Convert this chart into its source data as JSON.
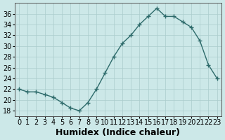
{
  "x": [
    0,
    1,
    2,
    3,
    4,
    5,
    6,
    7,
    8,
    9,
    10,
    11,
    12,
    13,
    14,
    15,
    16,
    17,
    18,
    19,
    20,
    21,
    22,
    23
  ],
  "y": [
    22,
    21.5,
    21.5,
    21,
    20.5,
    19.5,
    18.5,
    18,
    19.5,
    22,
    25,
    28,
    30.5,
    32,
    34,
    35.5,
    37,
    35.5,
    35.5,
    34.5,
    33.5,
    31,
    26.5,
    24
  ],
  "line_color": "#2e6b6b",
  "marker": "+",
  "marker_size": 4,
  "bg_color": "#cce8e8",
  "grid_color": "#aacccc",
  "xlabel": "Humidex (Indice chaleur)",
  "xlabel_fontsize": 9,
  "ylabel_ticks": [
    18,
    20,
    22,
    24,
    26,
    28,
    30,
    32,
    34,
    36
  ],
  "ylim": [
    17,
    38
  ],
  "xlim": [
    -0.5,
    23.5
  ],
  "xtick_labels": [
    "0",
    "1",
    "2",
    "3",
    "4",
    "5",
    "6",
    "7",
    "8",
    "9",
    "10",
    "11",
    "12",
    "13",
    "14",
    "15",
    "16",
    "17",
    "18",
    "19",
    "20",
    "21",
    "22",
    "23"
  ],
  "tick_fontsize": 7
}
